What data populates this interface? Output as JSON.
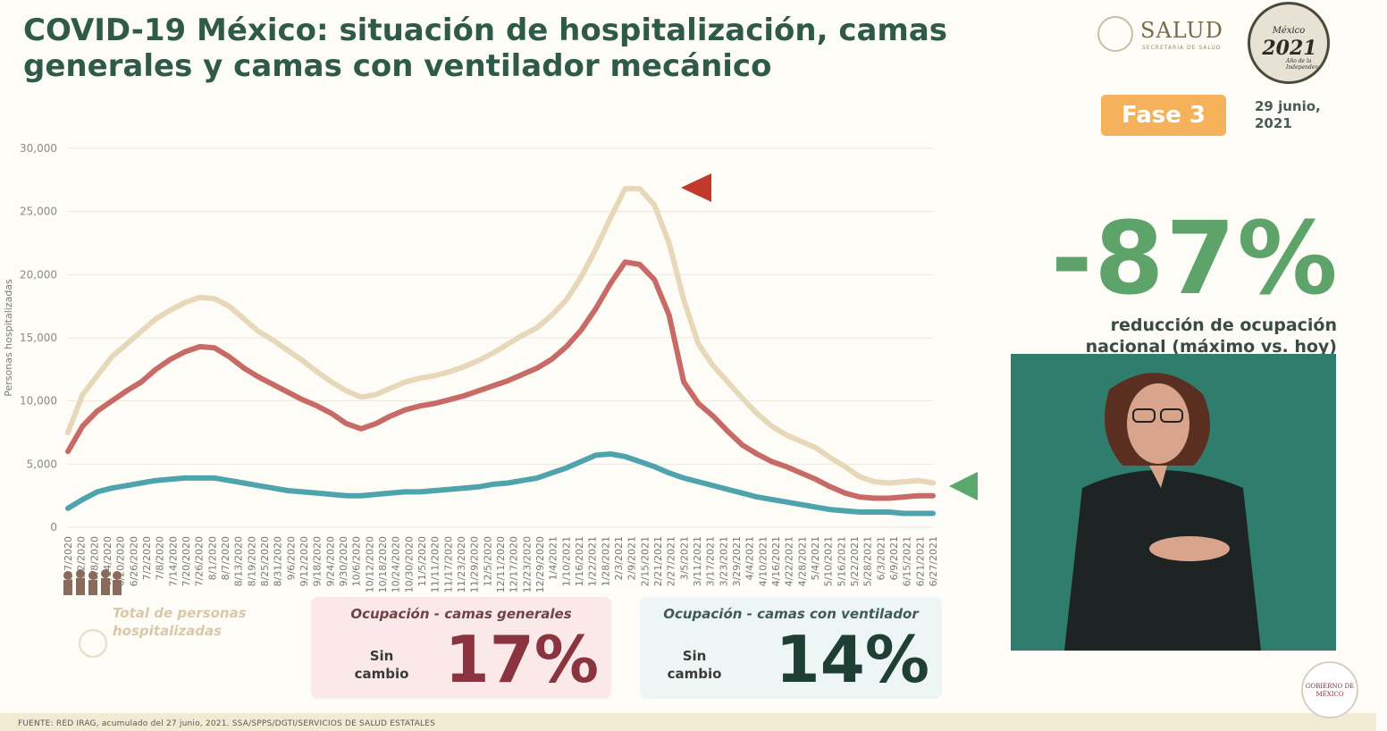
{
  "header": {
    "title": "COVID-19 México: situación de hospitalización, camas generales y camas con ventilador mecánico",
    "salud_name": "SALUD",
    "salud_sub": "SECRETARÍA DE SALUD",
    "logo2021_top": "México",
    "logo2021_year": "2021",
    "logo2021_sub": "Año de la Independencia",
    "fase": "Fase 3",
    "date": "29 junio, 2021"
  },
  "summary": {
    "big_pct": "-87%",
    "line1": "reducción de ocupación",
    "line2": "nacional (máximo vs. hoy)"
  },
  "legend": {
    "total": "Total de personas hospitalizadas"
  },
  "cards": {
    "general": {
      "title": "Ocupación - camas generales",
      "status": "Sin cambio",
      "pct": "17%"
    },
    "ventilator": {
      "title": "Ocupación - camas con ventilador",
      "status": "Sin cambio",
      "pct": "14%"
    }
  },
  "footer": {
    "source": "FUENTE: RED IRAG, acumulado del 27  junio, 2021.   SSA/SPPS/DGTI/SERVICIOS DE SALUD ESTATALES"
  },
  "gobierno": "GOBIERNO DE MÉXICO",
  "colors": {
    "total": "#e6d8b8",
    "general": "#c86a66",
    "ventilator": "#4fa3ad",
    "marker_general": "#c0392b",
    "marker_vent": "#5aa86b"
  },
  "chart_data": {
    "type": "line",
    "ylabel": "Personas hospitalizadas",
    "ylim": [
      0,
      30000
    ],
    "yticks": [
      "0",
      "5,000",
      "10,000",
      "15,000",
      "20,000",
      "25,000",
      "30,000"
    ],
    "xticks": [
      "5/27/2020",
      "6/2/2020",
      "6/8/2020",
      "6/14/2020",
      "6/20/2020",
      "6/26/2020",
      "7/2/2020",
      "7/8/2020",
      "7/14/2020",
      "7/20/2020",
      "7/26/2020",
      "8/1/2020",
      "8/7/2020",
      "8/13/2020",
      "8/19/2020",
      "8/25/2020",
      "8/31/2020",
      "9/6/2020",
      "9/12/2020",
      "9/18/2020",
      "9/24/2020",
      "9/30/2020",
      "10/6/2020",
      "10/12/2020",
      "10/18/2020",
      "10/24/2020",
      "10/30/2020",
      "11/5/2020",
      "11/11/2020",
      "11/17/2020",
      "11/23/2020",
      "11/29/2020",
      "12/5/2020",
      "12/11/2020",
      "12/17/2020",
      "12/23/2020",
      "12/29/2020",
      "1/4/2021",
      "1/10/2021",
      "1/16/2021",
      "1/22/2021",
      "1/28/2021",
      "2/3/2021",
      "2/9/2021",
      "2/15/2021",
      "2/21/2021",
      "2/27/2021",
      "3/5/2021",
      "3/11/2021",
      "3/17/2021",
      "3/23/2021",
      "3/29/2021",
      "4/4/2021",
      "4/10/2021",
      "4/16/2021",
      "4/22/2021",
      "4/28/2021",
      "5/4/2021",
      "5/10/2021",
      "5/16/2021",
      "5/22/2021",
      "5/28/2021",
      "6/3/2021",
      "6/9/2021",
      "6/15/2021",
      "6/21/2021",
      "6/27/2021"
    ],
    "series": [
      {
        "key": "total",
        "values": [
          7500,
          10500,
          12000,
          13500,
          14500,
          15500,
          16500,
          17200,
          17800,
          18200,
          18100,
          17500,
          16500,
          15500,
          14800,
          14000,
          13200,
          12300,
          11500,
          10800,
          10300,
          10500,
          11000,
          11500,
          11800,
          12000,
          12300,
          12700,
          13200,
          13800,
          14500,
          15200,
          15800,
          16800,
          18000,
          19800,
          22000,
          24500,
          26800,
          26800,
          25500,
          22500,
          18000,
          14500,
          12800,
          11500,
          10200,
          9000,
          8000,
          7300,
          6800,
          6300,
          5500,
          4800,
          4000,
          3600,
          3500,
          3600,
          3700,
          3500
        ]
      },
      {
        "key": "general",
        "values": [
          6000,
          8000,
          9200,
          10000,
          10800,
          11500,
          12500,
          13300,
          13900,
          14300,
          14200,
          13500,
          12600,
          11900,
          11300,
          10700,
          10100,
          9600,
          9000,
          8200,
          7800,
          8200,
          8800,
          9300,
          9600,
          9800,
          10100,
          10400,
          10800,
          11200,
          11600,
          12100,
          12600,
          13300,
          14300,
          15600,
          17300,
          19300,
          21000,
          20800,
          19600,
          16800,
          11500,
          9800,
          8800,
          7600,
          6500,
          5800,
          5200,
          4800,
          4300,
          3800,
          3200,
          2700,
          2400,
          2300,
          2300,
          2400,
          2500,
          2500
        ]
      },
      {
        "key": "ventilator",
        "values": [
          1500,
          2200,
          2800,
          3100,
          3300,
          3500,
          3700,
          3800,
          3900,
          3900,
          3900,
          3700,
          3500,
          3300,
          3100,
          2900,
          2800,
          2700,
          2600,
          2500,
          2500,
          2600,
          2700,
          2800,
          2800,
          2900,
          3000,
          3100,
          3200,
          3400,
          3500,
          3700,
          3900,
          4300,
          4700,
          5200,
          5700,
          5800,
          5600,
          5200,
          4800,
          4300,
          3900,
          3600,
          3300,
          3000,
          2700,
          2400,
          2200,
          2000,
          1800,
          1600,
          1400,
          1300,
          1200,
          1200,
          1200,
          1100,
          1100,
          1100
        ]
      }
    ]
  }
}
